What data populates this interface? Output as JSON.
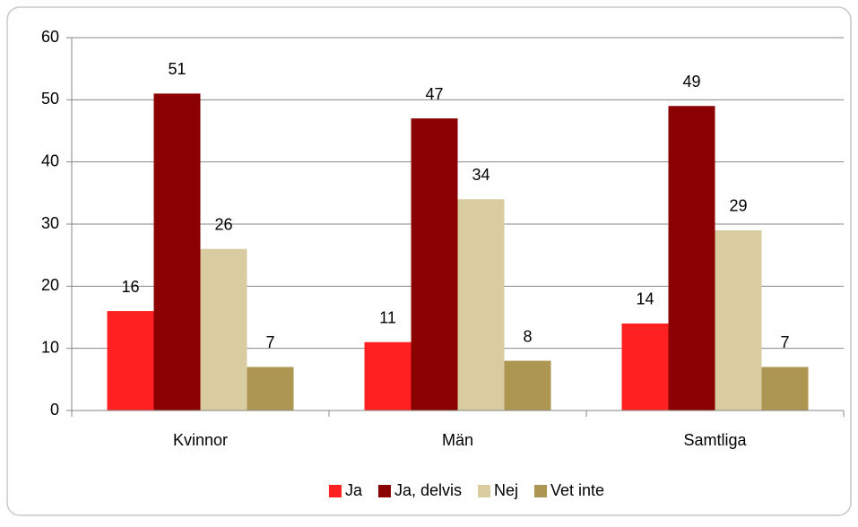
{
  "chart_data": {
    "type": "bar",
    "categories": [
      "Kvinnor",
      "Män",
      "Samtliga"
    ],
    "series": [
      {
        "name": "Ja",
        "color": "#ff2121",
        "values": [
          16,
          11,
          14
        ]
      },
      {
        "name": "Ja, delvis",
        "color": "#8b0000",
        "values": [
          51,
          47,
          49
        ]
      },
      {
        "name": "Nej",
        "color": "#d9cca1",
        "values": [
          26,
          34,
          29
        ]
      },
      {
        "name": "Vet inte",
        "color": "#ad9651",
        "values": [
          7,
          8,
          7
        ]
      }
    ],
    "ylim": [
      0,
      60
    ],
    "yticks": [
      0,
      10,
      20,
      30,
      40,
      50,
      60
    ],
    "grid": true,
    "legend": "bottom"
  }
}
